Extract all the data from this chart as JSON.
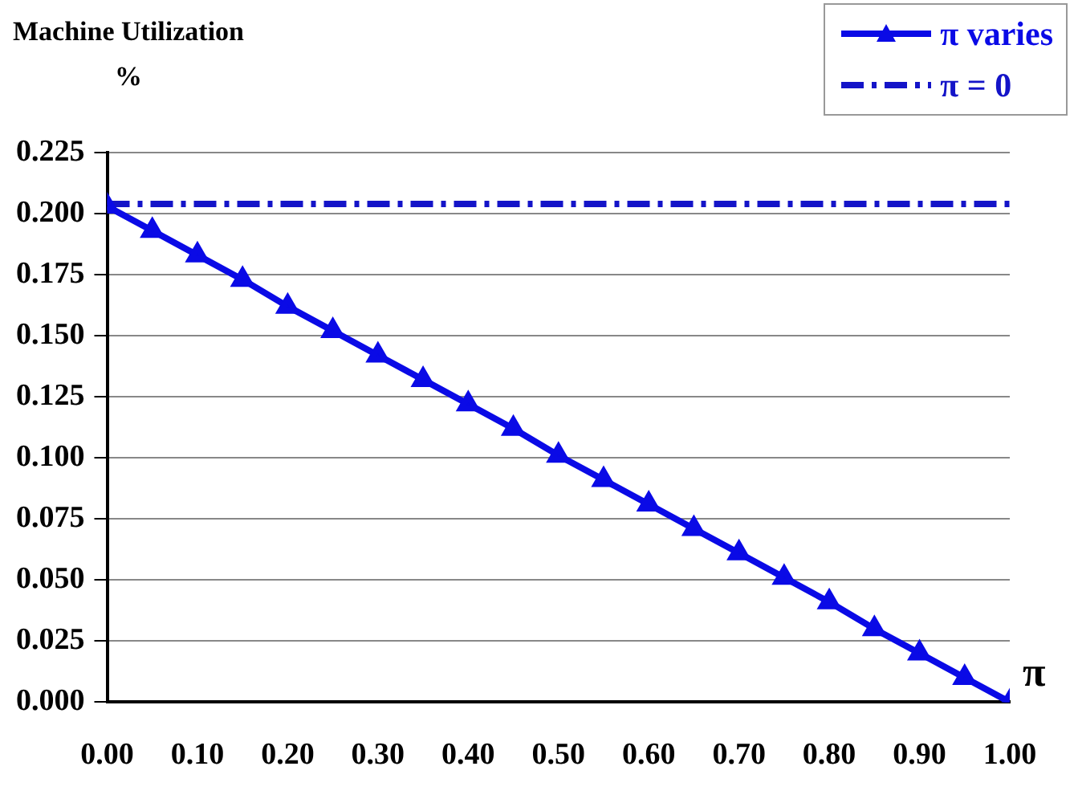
{
  "chart_data": {
    "type": "line",
    "ylabel": "Machine Utilization\n%",
    "xlabel": "π",
    "xlim": [
      0,
      1
    ],
    "xticks": [
      {
        "value": 0,
        "label": "0.00"
      },
      {
        "value": 0.1,
        "label": "0.10"
      },
      {
        "value": 0.2,
        "label": "0.20"
      },
      {
        "value": 0.3,
        "label": "0.30"
      },
      {
        "value": 0.4,
        "label": "0.40"
      },
      {
        "value": 0.5,
        "label": "0.50"
      },
      {
        "value": 0.6,
        "label": "0.60"
      },
      {
        "value": 0.7,
        "label": "0.70"
      },
      {
        "value": 0.8,
        "label": "0.80"
      },
      {
        "value": 0.9,
        "label": "0.90"
      },
      {
        "value": 1,
        "label": "1.00"
      }
    ],
    "ylim": [
      0,
      0.225
    ],
    "yticks": [
      {
        "value": 0,
        "label": "0.000"
      },
      {
        "value": 0.025,
        "label": "0.025"
      },
      {
        "value": 0.05,
        "label": "0.050"
      },
      {
        "value": 0.075,
        "label": "0.075"
      },
      {
        "value": 0.1,
        "label": "0.100"
      },
      {
        "value": 0.125,
        "label": "0.125"
      },
      {
        "value": 0.15,
        "label": "0.150"
      },
      {
        "value": 0.175,
        "label": "0.175"
      },
      {
        "value": 0.2,
        "label": "0.200"
      },
      {
        "value": 0.225,
        "label": "0.225"
      }
    ],
    "grid": "y",
    "legend": "top right",
    "series": [
      {
        "name": "π varies",
        "color": "#0a0ae6",
        "marker": "triangle",
        "line_style": "solid",
        "x": [
          0,
          0.05,
          0.1,
          0.15,
          0.2,
          0.25,
          0.3,
          0.35,
          0.4,
          0.45,
          0.5,
          0.55,
          0.6,
          0.65,
          0.7,
          0.75,
          0.8,
          0.85,
          0.9,
          0.95,
          1
        ],
        "values": [
          0.203,
          0.193,
          0.183,
          0.173,
          0.162,
          0.152,
          0.142,
          0.132,
          0.122,
          0.112,
          0.101,
          0.091,
          0.081,
          0.071,
          0.061,
          0.051,
          0.041,
          0.03,
          0.02,
          0.01,
          0.0
        ]
      },
      {
        "name": "π = 0",
        "color": "#1414c8",
        "marker": "none",
        "line_style": "dashed",
        "x": [
          0,
          1
        ],
        "values": [
          0.204,
          0.204
        ]
      }
    ]
  }
}
